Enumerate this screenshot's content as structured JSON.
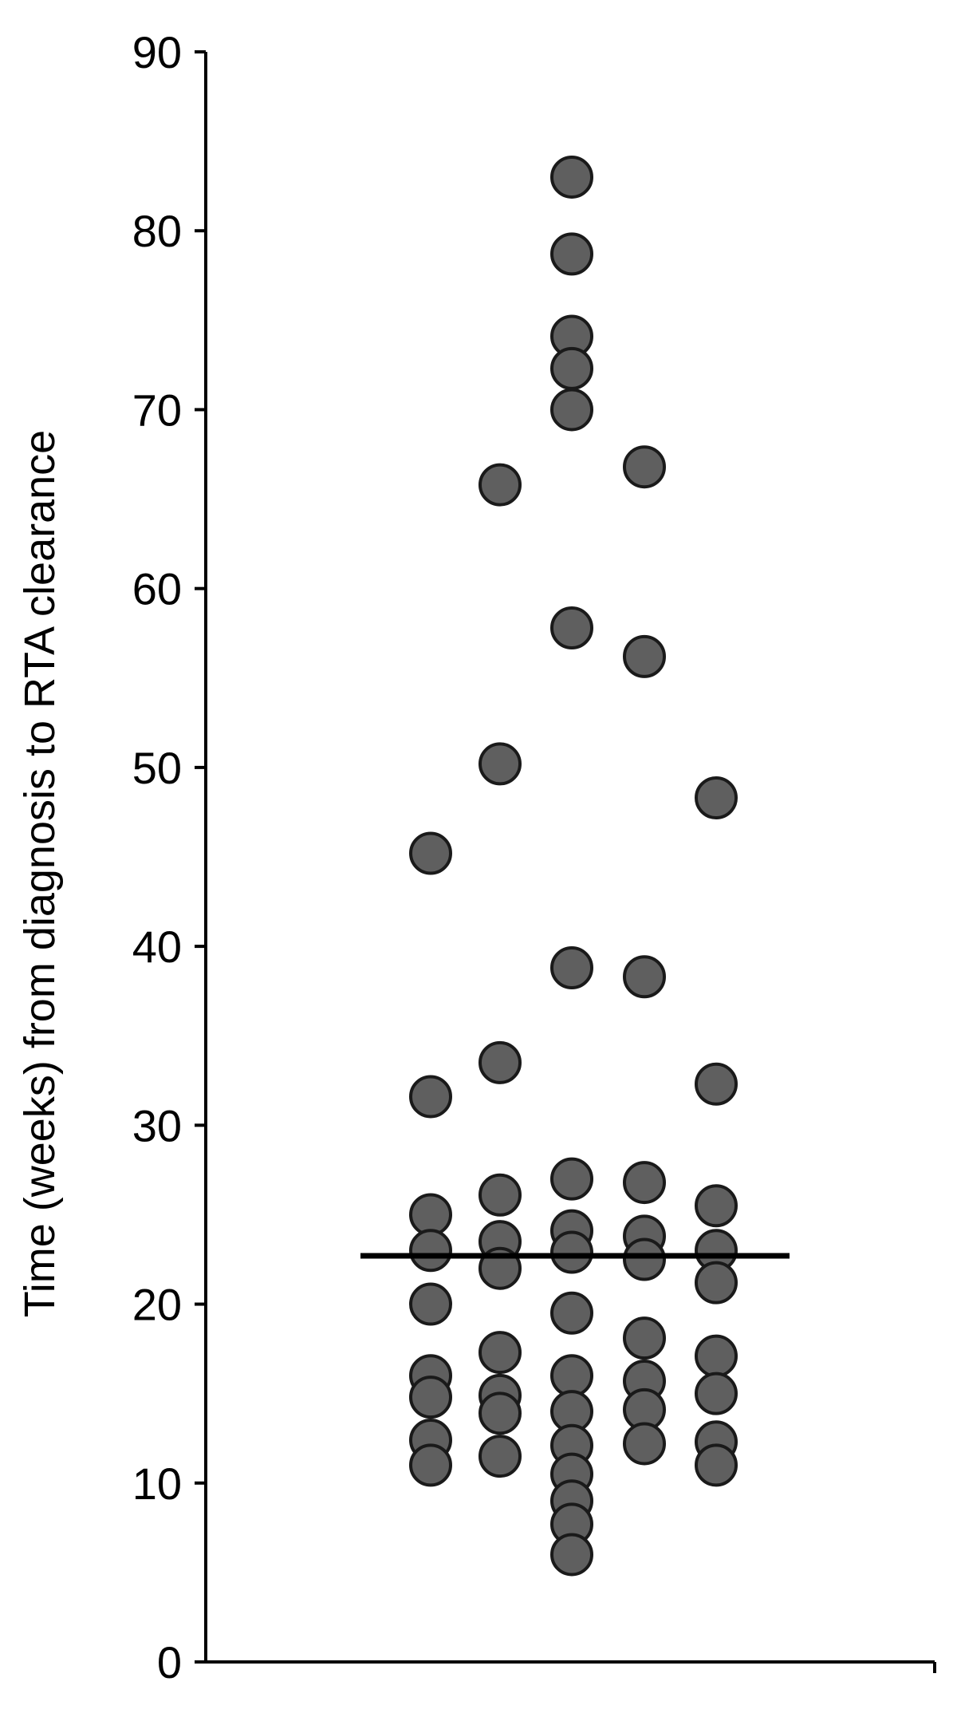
{
  "chart_data": {
    "type": "scatter",
    "title": "",
    "xlabel": "",
    "ylabel": "Time (weeks) from diagnosis to RTA clearance",
    "ylim": [
      0,
      90
    ],
    "yticks": [
      0,
      10,
      20,
      30,
      40,
      50,
      60,
      70,
      80,
      90
    ],
    "grid": false,
    "legend": "none",
    "colors": {
      "point_fill": "#5f5f5f",
      "point_stroke": "#1a1a1a",
      "axis": "#000000"
    },
    "median": 22.7,
    "columns": [
      {
        "values": [
          45.2,
          31.6,
          25.0,
          23.0,
          20.0,
          16.0,
          14.8,
          12.4,
          11.0
        ]
      },
      {
        "values": [
          65.8,
          50.2,
          33.5,
          26.1,
          23.5,
          22.0,
          17.3,
          14.9,
          13.9,
          11.5
        ]
      },
      {
        "values": [
          83.0,
          78.7,
          74.1,
          72.3,
          70.0,
          57.8,
          38.8,
          27.0,
          24.1,
          22.9,
          19.5,
          16.0,
          14.0,
          12.1,
          10.5,
          9.0,
          7.7,
          6.0
        ]
      },
      {
        "values": [
          66.8,
          56.2,
          38.3,
          26.8,
          23.8,
          22.5,
          18.1,
          15.7,
          14.1,
          12.2
        ]
      },
      {
        "values": [
          48.3,
          32.3,
          25.5,
          23.0,
          21.2,
          17.1,
          15.0,
          12.3,
          11.0
        ]
      }
    ]
  }
}
